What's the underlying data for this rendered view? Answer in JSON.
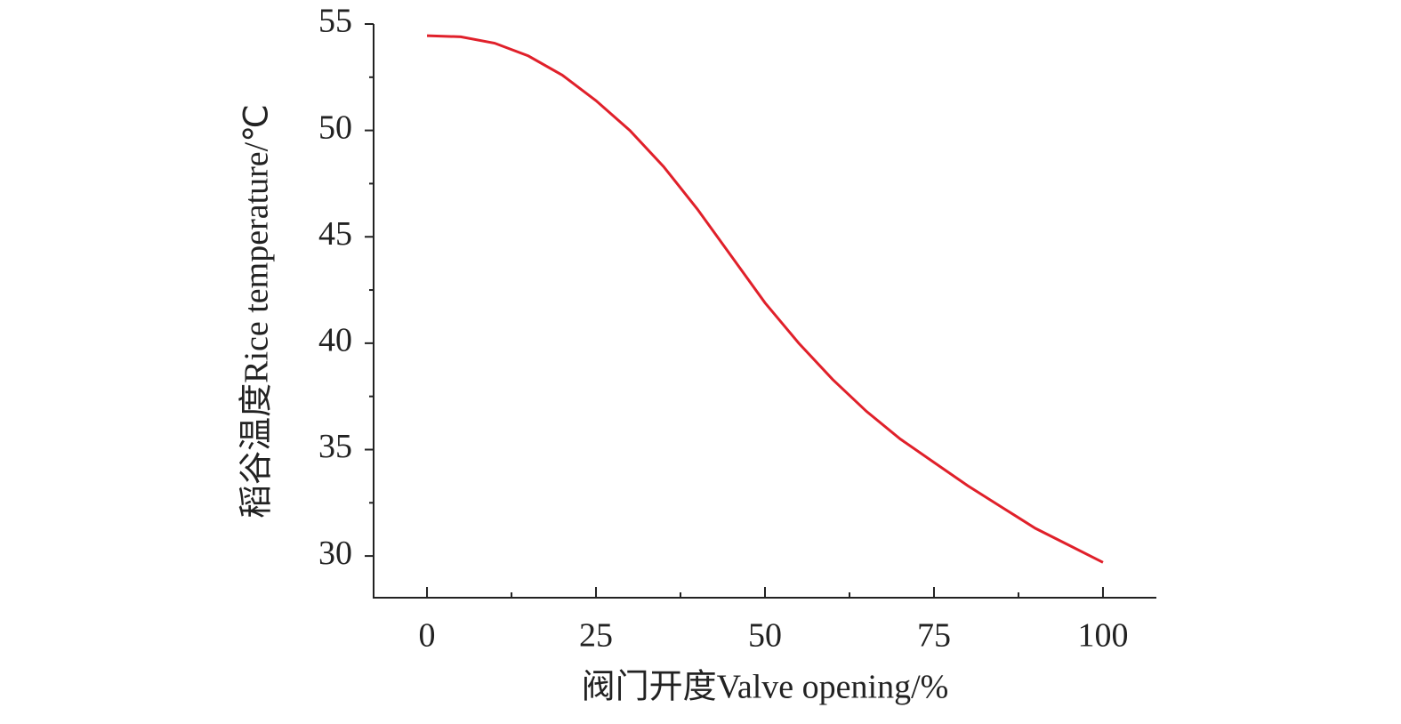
{
  "chart_data": {
    "type": "line",
    "x_label": "阀门开度Valve opening/%",
    "y_label": "稻谷温度Rice temperature/℃",
    "x": [
      0,
      5,
      10,
      15,
      20,
      25,
      30,
      35,
      40,
      45,
      50,
      55,
      60,
      65,
      70,
      75,
      80,
      85,
      90,
      95,
      100
    ],
    "series": [
      {
        "color": "#e0202a",
        "values": [
          54.45,
          54.4,
          54.1,
          53.5,
          52.6,
          51.4,
          50.0,
          48.3,
          46.3,
          44.1,
          41.9,
          40.0,
          38.3,
          36.8,
          35.5,
          34.4,
          33.3,
          32.3,
          31.3,
          30.5,
          29.7
        ]
      }
    ],
    "xlim": [
      -7.9,
      107.9
    ],
    "xticks": [
      0,
      25,
      50,
      75,
      100
    ],
    "xminorticks": [
      12.5,
      37.5,
      62.5,
      87.5
    ],
    "ylim": [
      28.04,
      55
    ],
    "yticks": [
      30,
      35,
      40,
      45,
      50,
      55
    ],
    "yminorticks": [
      32.5,
      37.5,
      42.5,
      47.5,
      52.5
    ],
    "grid": false
  }
}
